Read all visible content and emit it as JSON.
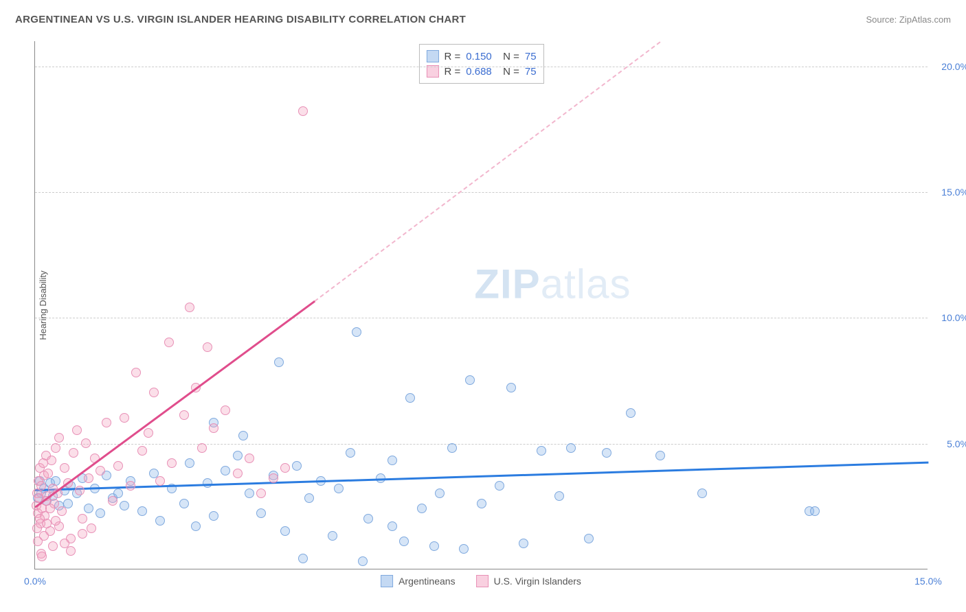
{
  "header": {
    "title": "ARGENTINEAN VS U.S. VIRGIN ISLANDER HEARING DISABILITY CORRELATION CHART",
    "source": "Source: ZipAtlas.com"
  },
  "watermark": {
    "prefix": "ZIP",
    "suffix": "atlas"
  },
  "chart": {
    "type": "scatter",
    "ylabel": "Hearing Disability",
    "xlim": [
      0,
      15
    ],
    "ylim": [
      0,
      21
    ],
    "xticks": [
      {
        "v": 0,
        "l": "0.0%"
      },
      {
        "v": 15,
        "l": "15.0%"
      }
    ],
    "yticks": [
      {
        "v": 5,
        "l": "5.0%"
      },
      {
        "v": 10,
        "l": "10.0%"
      },
      {
        "v": 15,
        "l": "15.0%"
      },
      {
        "v": 20,
        "l": "20.0%"
      }
    ],
    "grid_color": "#cccccc",
    "background_color": "#ffffff",
    "marker_size": 14,
    "series": [
      {
        "name": "Argentineans",
        "color_fill": "rgba(137,180,231,0.35)",
        "color_stroke": "#7fa9de",
        "trend_color": "#2b7ce0",
        "R": "0.150",
        "N": "75",
        "trend": {
          "x0": 0,
          "y0": 3.2,
          "x1": 15,
          "y1": 4.3
        },
        "points": [
          [
            0.1,
            3.0
          ],
          [
            0.15,
            3.2
          ],
          [
            0.2,
            2.7
          ],
          [
            0.25,
            3.4
          ],
          [
            0.3,
            2.9
          ],
          [
            0.35,
            3.5
          ],
          [
            0.4,
            2.5
          ],
          [
            0.5,
            3.1
          ],
          [
            0.55,
            2.6
          ],
          [
            0.6,
            3.3
          ],
          [
            0.7,
            3.0
          ],
          [
            0.8,
            3.6
          ],
          [
            0.9,
            2.4
          ],
          [
            1.0,
            3.2
          ],
          [
            1.1,
            2.2
          ],
          [
            1.2,
            3.7
          ],
          [
            1.3,
            2.8
          ],
          [
            1.4,
            3.0
          ],
          [
            1.5,
            2.5
          ],
          [
            1.6,
            3.5
          ],
          [
            1.8,
            2.3
          ],
          [
            2.0,
            3.8
          ],
          [
            2.1,
            1.9
          ],
          [
            2.3,
            3.2
          ],
          [
            2.5,
            2.6
          ],
          [
            2.7,
            1.7
          ],
          [
            2.9,
            3.4
          ],
          [
            3.0,
            2.1
          ],
          [
            3.2,
            3.9
          ],
          [
            3.4,
            4.5
          ],
          [
            3.5,
            5.3
          ],
          [
            3.6,
            3.0
          ],
          [
            3.8,
            2.2
          ],
          [
            4.0,
            3.7
          ],
          [
            4.1,
            8.2
          ],
          [
            4.2,
            1.5
          ],
          [
            4.4,
            4.1
          ],
          [
            4.6,
            2.8
          ],
          [
            4.8,
            3.5
          ],
          [
            5.0,
            1.3
          ],
          [
            5.1,
            3.2
          ],
          [
            5.3,
            4.6
          ],
          [
            5.4,
            9.4
          ],
          [
            5.6,
            2.0
          ],
          [
            5.8,
            3.6
          ],
          [
            6.0,
            4.3
          ],
          [
            6.2,
            1.1
          ],
          [
            6.3,
            6.8
          ],
          [
            6.5,
            2.4
          ],
          [
            6.8,
            3.0
          ],
          [
            7.0,
            4.8
          ],
          [
            7.2,
            0.8
          ],
          [
            7.3,
            7.5
          ],
          [
            7.5,
            2.6
          ],
          [
            7.8,
            3.3
          ],
          [
            8.0,
            7.2
          ],
          [
            8.2,
            1.0
          ],
          [
            8.5,
            4.7
          ],
          [
            8.8,
            2.9
          ],
          [
            9.0,
            4.8
          ],
          [
            9.3,
            1.2
          ],
          [
            9.6,
            4.6
          ],
          [
            10.0,
            6.2
          ],
          [
            10.5,
            4.5
          ],
          [
            13.0,
            2.3
          ],
          [
            13.1,
            2.3
          ],
          [
            11.2,
            3.0
          ],
          [
            4.5,
            0.4
          ],
          [
            5.5,
            0.3
          ],
          [
            6.7,
            0.9
          ],
          [
            6.0,
            1.7
          ],
          [
            3.0,
            5.8
          ],
          [
            2.6,
            4.2
          ],
          [
            0.05,
            2.8
          ],
          [
            0.08,
            3.5
          ]
        ]
      },
      {
        "name": "U.S. Virgin Islanders",
        "color_fill": "rgba(244,162,193,0.35)",
        "color_stroke": "#e890b6",
        "trend_color": "#e04d8c",
        "R": "0.688",
        "N": "75",
        "trend": {
          "x0": 0,
          "y0": 2.5,
          "x1": 4.7,
          "y1": 10.7
        },
        "trend_dash": {
          "x0": 4.7,
          "y0": 10.7,
          "x1": 10.5,
          "y1": 21.0
        },
        "points": [
          [
            0.02,
            2.5
          ],
          [
            0.04,
            3.0
          ],
          [
            0.05,
            2.2
          ],
          [
            0.06,
            3.5
          ],
          [
            0.07,
            2.8
          ],
          [
            0.08,
            4.0
          ],
          [
            0.09,
            1.8
          ],
          [
            0.1,
            3.3
          ],
          [
            0.12,
            2.4
          ],
          [
            0.14,
            4.2
          ],
          [
            0.15,
            3.7
          ],
          [
            0.16,
            2.1
          ],
          [
            0.18,
            4.5
          ],
          [
            0.2,
            2.9
          ],
          [
            0.22,
            3.8
          ],
          [
            0.25,
            1.5
          ],
          [
            0.28,
            4.3
          ],
          [
            0.3,
            3.2
          ],
          [
            0.32,
            2.6
          ],
          [
            0.35,
            4.8
          ],
          [
            0.38,
            3.0
          ],
          [
            0.4,
            5.2
          ],
          [
            0.45,
            2.3
          ],
          [
            0.5,
            4.0
          ],
          [
            0.55,
            3.4
          ],
          [
            0.6,
            1.2
          ],
          [
            0.65,
            4.6
          ],
          [
            0.7,
            5.5
          ],
          [
            0.75,
            3.1
          ],
          [
            0.8,
            2.0
          ],
          [
            0.85,
            5.0
          ],
          [
            0.9,
            3.6
          ],
          [
            0.95,
            1.6
          ],
          [
            1.0,
            4.4
          ],
          [
            1.1,
            3.9
          ],
          [
            1.2,
            5.8
          ],
          [
            1.3,
            2.7
          ],
          [
            1.4,
            4.1
          ],
          [
            1.5,
            6.0
          ],
          [
            1.6,
            3.3
          ],
          [
            1.7,
            7.8
          ],
          [
            1.8,
            4.7
          ],
          [
            1.9,
            5.4
          ],
          [
            2.0,
            7.0
          ],
          [
            2.1,
            3.5
          ],
          [
            2.25,
            9.0
          ],
          [
            2.3,
            4.2
          ],
          [
            2.5,
            6.1
          ],
          [
            2.6,
            10.4
          ],
          [
            2.7,
            7.2
          ],
          [
            2.8,
            4.8
          ],
          [
            2.9,
            8.8
          ],
          [
            3.0,
            5.6
          ],
          [
            3.2,
            6.3
          ],
          [
            3.4,
            3.8
          ],
          [
            3.6,
            4.4
          ],
          [
            3.8,
            3.0
          ],
          [
            4.0,
            3.6
          ],
          [
            4.2,
            4.0
          ],
          [
            4.5,
            18.2
          ],
          [
            0.5,
            1.0
          ],
          [
            0.6,
            0.7
          ],
          [
            0.8,
            1.4
          ],
          [
            0.3,
            0.9
          ],
          [
            0.15,
            1.3
          ],
          [
            0.1,
            0.6
          ],
          [
            0.2,
            1.8
          ],
          [
            0.4,
            1.7
          ],
          [
            0.05,
            1.1
          ],
          [
            0.12,
            0.5
          ],
          [
            0.25,
            2.4
          ],
          [
            0.35,
            1.9
          ],
          [
            0.18,
            2.7
          ],
          [
            0.08,
            2.0
          ],
          [
            0.03,
            1.6
          ]
        ]
      }
    ],
    "legend_bottom": [
      {
        "swatch": "blue",
        "label": "Argentineans"
      },
      {
        "swatch": "pink",
        "label": "U.S. Virgin Islanders"
      }
    ]
  }
}
